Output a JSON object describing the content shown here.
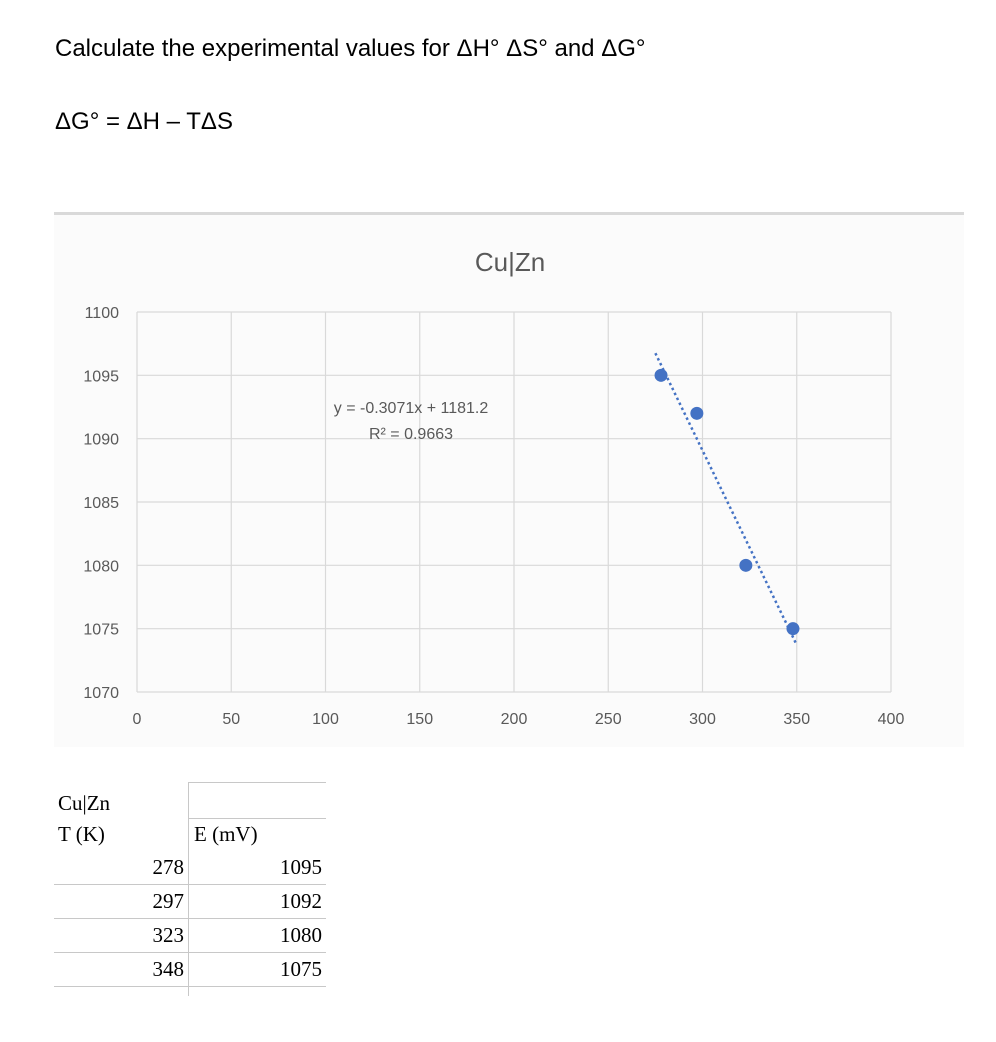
{
  "question": {
    "line1": "Calculate the experimental values for ΔH° ΔS° and ΔG°",
    "line2": "ΔG° = ΔH – TΔS"
  },
  "chart_data": {
    "type": "scatter",
    "title": "Cu|Zn",
    "xlabel": "",
    "ylabel": "",
    "xlim": [
      0,
      400
    ],
    "ylim": [
      1070,
      1100
    ],
    "x_ticks": [
      0,
      50,
      100,
      150,
      200,
      250,
      300,
      350,
      400
    ],
    "y_ticks": [
      1070,
      1075,
      1080,
      1085,
      1090,
      1095,
      1100
    ],
    "grid": true,
    "points": {
      "x": [
        278,
        297,
        323,
        348
      ],
      "y": [
        1095,
        1092,
        1080,
        1075
      ]
    },
    "trendline": {
      "slope": -0.3071,
      "intercept": 1181.2,
      "equation": "y = -0.3071x + 1181.2",
      "r_squared": "R² = 0.9663"
    },
    "colors": {
      "marker": "#4472c4",
      "grid": "#d9d9d9",
      "text": "#595959"
    }
  },
  "table": {
    "title": "Cu|Zn",
    "headers": [
      "T (K)",
      "E (mV)"
    ],
    "rows": [
      [
        "278",
        "1095"
      ],
      [
        "297",
        "1092"
      ],
      [
        "323",
        "1080"
      ],
      [
        "348",
        "1075"
      ]
    ]
  }
}
